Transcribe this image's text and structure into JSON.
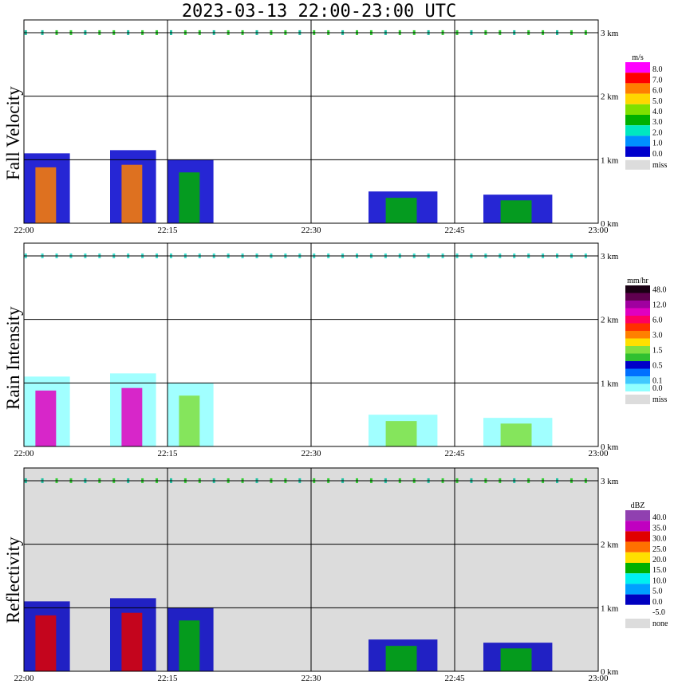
{
  "title": "2023-03-13   22:00-23:00 UTC",
  "colors": {
    "miss_gray": "#dcdcdc",
    "grid": "#000000",
    "ticks_green": "#33cc33"
  },
  "chart_data": [
    {
      "type": "heatmap",
      "ylabel": "Fall Velocity",
      "x_ticks": [
        "22:00",
        "22:15",
        "22:30",
        "22:45",
        "23:00"
      ],
      "y_ticks": [
        "0 km",
        "1 km",
        "2 km",
        "3 km"
      ],
      "ylim_km": [
        0,
        3.2
      ],
      "background": "white",
      "legend": {
        "unit": "m/s",
        "entries": [
          {
            "label": "8.0",
            "color": "#ff00ff"
          },
          {
            "label": "7.0",
            "color": "#ff0000"
          },
          {
            "label": "6.0",
            "color": "#ff7f00"
          },
          {
            "label": "5.0",
            "color": "#ffd700"
          },
          {
            "label": "4.0",
            "color": "#7fe000"
          },
          {
            "label": "3.0",
            "color": "#00b000"
          },
          {
            "label": "2.0",
            "color": "#00e8c0"
          },
          {
            "label": "1.0",
            "color": "#0090ff"
          },
          {
            "label": "0.0",
            "color": "#0000cc"
          }
        ],
        "miss_label": "miss"
      }
    },
    {
      "type": "heatmap",
      "ylabel": "Rain Intensity",
      "x_ticks": [
        "22:00",
        "22:15",
        "22:30",
        "22:45",
        "23:00"
      ],
      "y_ticks": [
        "0 km",
        "1 km",
        "2 km",
        "3 km"
      ],
      "ylim_km": [
        0,
        3.2
      ],
      "background": "white",
      "legend": {
        "unit": "mm/hr",
        "entries": [
          {
            "label": "48.0",
            "color": "#1a0014"
          },
          {
            "label": "",
            "color": "#600050"
          },
          {
            "label": "12.0",
            "color": "#a000a0"
          },
          {
            "label": "",
            "color": "#e000c0"
          },
          {
            "label": "6.0",
            "color": "#ff0060"
          },
          {
            "label": "",
            "color": "#ff3000"
          },
          {
            "label": "3.0",
            "color": "#ff8000"
          },
          {
            "label": "",
            "color": "#ffe000"
          },
          {
            "label": "1.5",
            "color": "#80e040"
          },
          {
            "label": "",
            "color": "#30c030"
          },
          {
            "label": "0.5",
            "color": "#0000c8"
          },
          {
            "label": "",
            "color": "#0070ff"
          },
          {
            "label": "0.1",
            "color": "#40c8ff"
          },
          {
            "label": "0.0",
            "color": "#90ffff"
          }
        ],
        "miss_label": "miss"
      }
    },
    {
      "type": "heatmap",
      "ylabel": "Reflectivity",
      "x_ticks": [
        "22:00",
        "22:15",
        "22:30",
        "22:45",
        "23:00"
      ],
      "y_ticks": [
        "0 km",
        "1 km",
        "2 km",
        "3 km"
      ],
      "ylim_km": [
        0,
        3.2
      ],
      "background": "gray",
      "legend": {
        "unit": "dBZ",
        "entries": [
          {
            "label": "40.0",
            "color": "#9040b0"
          },
          {
            "label": "35.0",
            "color": "#c000c0"
          },
          {
            "label": "30.0",
            "color": "#e00000"
          },
          {
            "label": "25.0",
            "color": "#ff7000"
          },
          {
            "label": "20.0",
            "color": "#ffe000"
          },
          {
            "label": "15.0",
            "color": "#00b000"
          },
          {
            "label": "10.0",
            "color": "#00f0f0"
          },
          {
            "label": "5.0",
            "color": "#00a0ff"
          },
          {
            "label": "0.0",
            "color": "#0000c0"
          },
          {
            "label": "-5.0",
            "color": "#ffffff"
          }
        ],
        "miss_label": "none"
      }
    }
  ]
}
